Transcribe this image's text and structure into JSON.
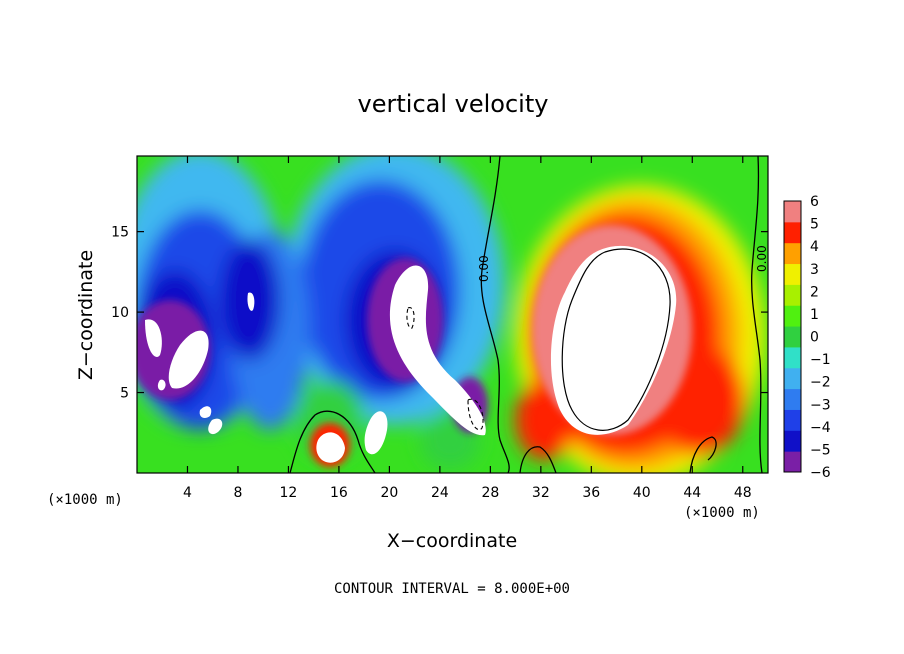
{
  "chart_data": {
    "type": "heatmap",
    "title": "vertical velocity",
    "xlabel": "X−coordinate",
    "ylabel": "Z−coordinate",
    "x_unit_left": "(×1000 m)",
    "x_unit_right": "(×1000 m)",
    "footer": "CONTOUR INTERVAL = 8.000E+00",
    "xlim": [
      0,
      50
    ],
    "ylim": [
      0,
      19.7
    ],
    "x_ticks": [
      4,
      8,
      12,
      16,
      20,
      24,
      28,
      32,
      36,
      40,
      44,
      48
    ],
    "x_tick_labels": [
      "4",
      "8",
      "12",
      "16",
      "20",
      "24",
      "28",
      "32",
      "36",
      "40",
      "44",
      "48"
    ],
    "y_ticks": [
      5,
      10,
      15
    ],
    "y_tick_labels": [
      "5",
      "10",
      "15"
    ],
    "colorbar": {
      "min": -6,
      "max": 6,
      "tick_values": [
        6,
        5,
        4,
        3,
        2,
        1,
        0,
        -1,
        -2,
        -3,
        -4,
        -5,
        -6
      ],
      "tick_labels": [
        "6",
        "5",
        "4",
        "3",
        "2",
        "1",
        "0",
        "−1",
        "−2",
        "−3",
        "−4",
        "−5",
        "−6"
      ],
      "colors": [
        "#7a1fa6",
        "#1010c8",
        "#1f40e8",
        "#2f7cf0",
        "#40b0f0",
        "#30e0c8",
        "#30d040",
        "#50f010",
        "#a8f000",
        "#f0f000",
        "#ffa000",
        "#ff2000",
        "#f08080"
      ]
    },
    "contour_labels": [
      {
        "text": "0.00",
        "x": 28.0,
        "z": 12.5
      },
      {
        "text": "0.00",
        "x": 49.2,
        "z": 13.5
      }
    ],
    "updraft_center": {
      "x": 39,
      "z": 9
    },
    "downdraft_regions": [
      {
        "x": 3,
        "z": 9
      },
      {
        "x": 9,
        "z": 11
      },
      {
        "x": 21,
        "z": 8
      },
      {
        "x": 26,
        "z": 4
      }
    ]
  }
}
